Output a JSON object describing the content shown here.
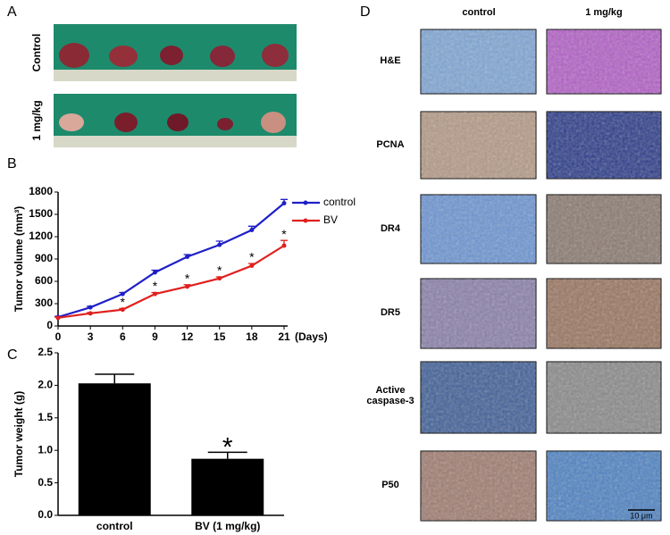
{
  "panel_labels": [
    "A",
    "B",
    "C",
    "D"
  ],
  "photos": {
    "rows": [
      "Control",
      "1 mg/kg"
    ]
  },
  "histology": {
    "columns": [
      "control",
      "1 mg/kg"
    ],
    "rows": [
      "H&E",
      "PCNA",
      "DR4",
      "DR5",
      "Active caspase-3",
      "P50"
    ],
    "scale_bar": "10 μm"
  },
  "chart_data": [
    {
      "type": "line",
      "ylabel": "Tumor volume (mm³)",
      "xlabel": "(Days)",
      "x": [
        0,
        3,
        6,
        9,
        12,
        15,
        18,
        21
      ],
      "series": [
        {
          "name": "control",
          "color": "#1f1fc8",
          "values": [
            120,
            250,
            430,
            720,
            930,
            1090,
            1290,
            1650
          ],
          "errors": [
            10,
            15,
            20,
            30,
            30,
            50,
            50,
            50
          ]
        },
        {
          "name": "BV",
          "color": "#e0201e",
          "values": [
            110,
            170,
            220,
            430,
            530,
            640,
            810,
            1080
          ],
          "errors": [
            10,
            10,
            15,
            20,
            25,
            20,
            30,
            70
          ]
        }
      ],
      "annotations": [
        {
          "text": "*",
          "x": 6
        },
        {
          "text": "*",
          "x": 9
        },
        {
          "text": "*",
          "x": 12
        },
        {
          "text": "*",
          "x": 15
        },
        {
          "text": "*",
          "x": 18
        },
        {
          "text": "*",
          "x": 21
        }
      ],
      "xlim": [
        0,
        21
      ],
      "xticks": [
        0,
        3,
        6,
        9,
        12,
        15,
        18,
        21
      ],
      "ylim": [
        0,
        1800
      ],
      "yticks": [
        0,
        300,
        600,
        900,
        1200,
        1500,
        1800
      ],
      "legend": "top-right"
    },
    {
      "type": "bar",
      "ylabel": "Tumor weight (g)",
      "categories": [
        "control",
        "BV (1 mg/kg)"
      ],
      "values": [
        2.03,
        0.87
      ],
      "errors": [
        0.14,
        0.1
      ],
      "color": "#000000",
      "annotations": [
        {
          "text": "*",
          "category": 1
        }
      ],
      "ylim": [
        0,
        2.5
      ],
      "yticks": [
        {
          "value": 0,
          "label": "0.0"
        },
        0.5,
        {
          "value": 1,
          "label": "1.0"
        },
        1.5,
        {
          "value": 2,
          "label": "2.0"
        },
        2.5
      ]
    }
  ]
}
